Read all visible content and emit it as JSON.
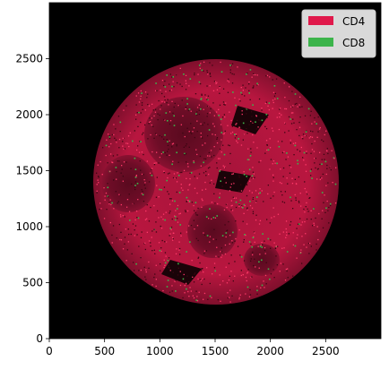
{
  "legend": {
    "placement": "upper-right",
    "entries": [
      {
        "label": "CD4",
        "color": "#e0194b"
      },
      {
        "label": "CD8",
        "color": "#3cb44b"
      }
    ]
  },
  "axes": {
    "xlim": [
      0,
      3000
    ],
    "ylim": [
      0,
      3000
    ],
    "x_ticks": [
      0,
      500,
      1000,
      1500,
      2000,
      2500
    ],
    "y_ticks": [
      0,
      500,
      1000,
      1500,
      2000,
      2500
    ]
  },
  "colors": {
    "background": "#000000",
    "cd4": "#e0194b",
    "cd8": "#3cb44b"
  }
}
